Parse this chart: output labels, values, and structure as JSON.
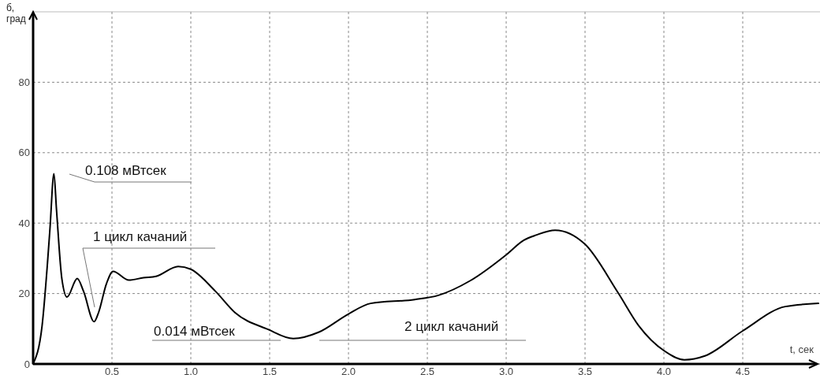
{
  "chart_data": {
    "type": "line",
    "xlabel": "t, сек",
    "ylabel": "б,\nград",
    "xlim": [
      0,
      5
    ],
    "ylim": [
      0,
      100
    ],
    "xticks": [
      0.5,
      {
        "value": 1,
        "label": "1.0"
      },
      1.5,
      {
        "value": 2,
        "label": "2.0"
      },
      2.5,
      {
        "value": 3,
        "label": "3.0"
      },
      3.5,
      {
        "value": 4,
        "label": "4.0"
      },
      4.5
    ],
    "yticks": [
      0,
      20,
      40,
      60,
      80
    ],
    "grid": true,
    "marker": "none",
    "line_style": "solid",
    "series": [
      {
        "color": "#000000",
        "x": [
          0,
          0.057,
          0.09,
          0.107,
          0.132,
          0.148,
          0.182,
          0.215,
          0.28,
          0.32,
          0.387,
          0.415,
          0.465,
          0.507,
          0.607,
          0.7,
          0.78,
          0.92,
          1.0,
          1.157,
          1.28,
          1.49,
          1.65,
          1.81,
          2.0,
          2.14,
          2.42,
          2.57,
          2.77,
          3.0,
          3.11,
          3.19,
          3.31,
          3.5,
          3.71,
          3.84,
          4.0,
          4.13,
          4.26,
          4.5,
          4.77,
          4.98
        ],
        "values": [
          0,
          10.9,
          28,
          38.5,
          54,
          44,
          24.3,
          19,
          24.3,
          20.6,
          12,
          14.6,
          22.8,
          26.3,
          23.8,
          24.5,
          24.9,
          27.7,
          26.9,
          20.6,
          14.6,
          9.8,
          7.2,
          9.0,
          14.2,
          17.2,
          18.3,
          19.5,
          23.6,
          31,
          35.1,
          36.6,
          38,
          34,
          20.2,
          10.9,
          3.8,
          1.2,
          2.3,
          9.4,
          16.3,
          17.2
        ]
      }
    ],
    "annotations": [
      "0.108 мВтсек",
      "1 цикл качаний",
      "0.014 мВтсек",
      "2 цикл качаний"
    ]
  }
}
